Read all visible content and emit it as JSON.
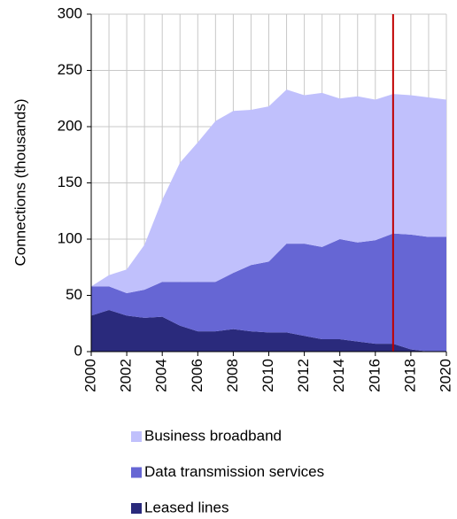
{
  "chart_data": {
    "type": "stacked_area",
    "y_label": "Connections (thousands)",
    "x": [
      2000,
      2001,
      2002,
      2003,
      2004,
      2005,
      2006,
      2007,
      2008,
      2009,
      2010,
      2011,
      2012,
      2013,
      2014,
      2015,
      2016,
      2017,
      2018,
      2019,
      2020
    ],
    "series": [
      {
        "name": "Business broadband",
        "color": "#c0c0fc",
        "values": [
          0,
          10,
          21,
          40,
          73,
          106,
          124,
          143,
          144,
          138,
          138,
          137,
          132,
          137,
          125,
          130,
          125,
          124,
          124,
          124,
          122
        ]
      },
      {
        "name": "Data transmission services",
        "color": "#6666d4",
        "values": [
          26,
          21,
          20,
          25,
          31,
          39,
          44,
          44,
          50,
          59,
          63,
          79,
          82,
          82,
          89,
          88,
          92,
          98,
          102,
          102,
          102
        ]
      },
      {
        "name": "Leased lines",
        "color": "#2a2a7c",
        "values": [
          32,
          37,
          32,
          30,
          31,
          23,
          18,
          18,
          20,
          18,
          17,
          17,
          14,
          11,
          11,
          9,
          7,
          7,
          2,
          0,
          0
        ]
      }
    ],
    "xlim": [
      2000,
      2020
    ],
    "xticks": [
      2000,
      2002,
      2004,
      2006,
      2008,
      2010,
      2012,
      2014,
      2016,
      2018,
      2020
    ],
    "ylim": [
      0,
      300
    ],
    "yticks": [
      0,
      50,
      100,
      150,
      200,
      250,
      300
    ],
    "grid": true,
    "marker_x": 2017,
    "marker_color": "#c00000",
    "legend": "bottom"
  }
}
